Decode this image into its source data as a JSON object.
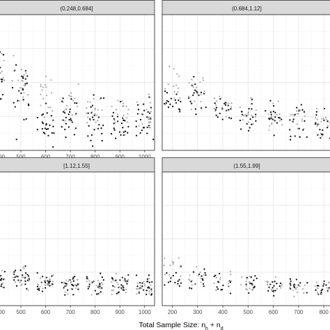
{
  "chart_data": [
    {
      "type": "scatter",
      "panel_title": "(0.248,0.684]",
      "xlabel": "Total Sample Size: n_h + n_d",
      "ylabel": "",
      "xticks": [
        500,
        600,
        700,
        800,
        900,
        1000
      ],
      "tick_labels": [
        "500",
        "600",
        "700",
        "800",
        "900",
        "1000"
      ],
      "partial_tick_labels": [
        "00"
      ],
      "xlim": [
        410,
        1040
      ],
      "ylim": [
        0,
        1
      ],
      "grid": true,
      "legend": "none",
      "series": [
        {
          "name": "",
          "color": "#111111",
          "group_x": [
            400,
            500,
            600,
            700,
            800,
            900,
            1000
          ],
          "y_center": [
            0.53,
            0.42,
            0.22,
            0.24,
            0.22,
            0.2,
            0.2
          ],
          "y_spread": [
            0.34,
            0.38,
            0.26,
            0.22,
            0.22,
            0.2,
            0.22
          ],
          "points_per_group": 24
        },
        {
          "name": "",
          "color": "#9e9e9e",
          "group_x": [
            400,
            500,
            600,
            700,
            800,
            900,
            1000
          ],
          "y_center": [
            0.6,
            0.5,
            0.38,
            0.34,
            0.3,
            0.28,
            0.26
          ],
          "y_spread": [
            0.26,
            0.3,
            0.22,
            0.2,
            0.2,
            0.18,
            0.18
          ],
          "points_per_group": 18
        }
      ]
    },
    {
      "type": "scatter",
      "panel_title": "(0.684,1.12]",
      "xlabel": "",
      "ylabel": "",
      "xticks": [],
      "tick_labels": [],
      "partial_tick_labels": [],
      "xlim": [
        160,
        830
      ],
      "ylim": [
        0,
        1
      ],
      "grid": true,
      "legend": "none",
      "series": [
        {
          "name": "",
          "color": "#111111",
          "group_x": [
            200,
            300,
            400,
            500,
            600,
            700,
            800
          ],
          "y_center": [
            0.35,
            0.42,
            0.3,
            0.26,
            0.22,
            0.2,
            0.2
          ],
          "y_spread": [
            0.12,
            0.2,
            0.2,
            0.2,
            0.18,
            0.18,
            0.18
          ],
          "points_per_group": 18
        },
        {
          "name": "",
          "color": "#9e9e9e",
          "group_x": [
            200,
            300,
            400,
            500,
            600,
            700,
            800
          ],
          "y_center": [
            0.5,
            0.42,
            0.34,
            0.3,
            0.26,
            0.24,
            0.22
          ],
          "y_spread": [
            0.26,
            0.22,
            0.18,
            0.16,
            0.16,
            0.16,
            0.16
          ],
          "points_per_group": 14
        }
      ]
    },
    {
      "type": "scatter",
      "panel_title": "[1.12,1.55]",
      "xlabel": "",
      "ylabel": "",
      "xticks": [
        500,
        600,
        700,
        800,
        900,
        1000
      ],
      "tick_labels": [
        "500",
        "600",
        "700",
        "800",
        "900",
        "1000"
      ],
      "partial_tick_labels": [
        "00"
      ],
      "xlim": [
        410,
        1040
      ],
      "ylim": [
        0,
        1
      ],
      "grid": true,
      "legend": "none",
      "series": [
        {
          "name": "",
          "color": "#111111",
          "group_x": [
            400,
            500,
            600,
            700,
            800,
            900,
            1000
          ],
          "y_center": [
            0.2,
            0.2,
            0.17,
            0.16,
            0.16,
            0.15,
            0.15
          ],
          "y_spread": [
            0.14,
            0.14,
            0.12,
            0.12,
            0.12,
            0.12,
            0.12
          ],
          "points_per_group": 22
        },
        {
          "name": "",
          "color": "#9e9e9e",
          "group_x": [
            400,
            500,
            600,
            700,
            800,
            900,
            1000
          ],
          "y_center": [
            0.22,
            0.2,
            0.18,
            0.16,
            0.16,
            0.15,
            0.15
          ],
          "y_spread": [
            0.14,
            0.12,
            0.1,
            0.1,
            0.1,
            0.1,
            0.1
          ],
          "points_per_group": 18
        }
      ]
    },
    {
      "type": "scatter",
      "panel_title": "(1.55,1.99]",
      "xlabel": "",
      "ylabel": "",
      "xticks": [
        200,
        300,
        400,
        500,
        600,
        700,
        800
      ],
      "tick_labels": [
        "200",
        "300",
        "400",
        "500",
        "600",
        "700",
        "800"
      ],
      "partial_tick_labels": [],
      "xlim": [
        160,
        830
      ],
      "ylim": [
        0,
        1
      ],
      "grid": true,
      "legend": "none",
      "series": [
        {
          "name": "",
          "color": "#111111",
          "group_x": [
            200,
            300,
            400,
            500,
            600,
            700,
            800
          ],
          "y_center": [
            0.2,
            0.2,
            0.16,
            0.16,
            0.14,
            0.14,
            0.14
          ],
          "y_spread": [
            0.12,
            0.12,
            0.12,
            0.12,
            0.1,
            0.1,
            0.1
          ],
          "points_per_group": 14
        },
        {
          "name": "",
          "color": "#9e9e9e",
          "group_x": [
            200,
            300,
            400,
            500,
            600,
            700,
            800
          ],
          "y_center": [
            0.3,
            0.22,
            0.18,
            0.16,
            0.15,
            0.14,
            0.14
          ],
          "y_spread": [
            0.14,
            0.12,
            0.1,
            0.1,
            0.1,
            0.1,
            0.1
          ],
          "points_per_group": 12
        }
      ]
    }
  ]
}
